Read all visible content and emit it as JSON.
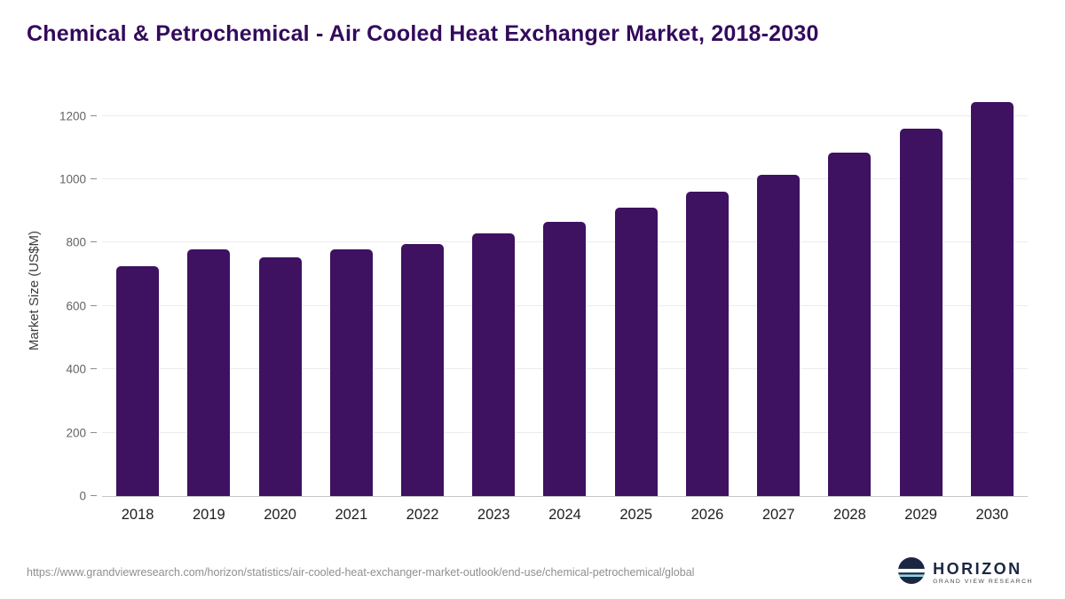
{
  "chart_data": {
    "type": "bar",
    "title": "Chemical & Petrochemical - Air Cooled Heat Exchanger Market, 2018-2030",
    "xlabel": "",
    "ylabel": "Market Size (US$M)",
    "categories": [
      "2018",
      "2019",
      "2020",
      "2021",
      "2022",
      "2023",
      "2024",
      "2025",
      "2026",
      "2027",
      "2028",
      "2029",
      "2030"
    ],
    "values": [
      725,
      780,
      755,
      780,
      795,
      830,
      865,
      910,
      960,
      1015,
      1085,
      1160,
      1245
    ],
    "yticks": [
      0,
      200,
      400,
      600,
      800,
      1000,
      1200
    ],
    "ylim": [
      0,
      1300
    ],
    "grid": true,
    "legend": "none",
    "bar_color": "#3e1161",
    "title_color": "#330a5c"
  },
  "footer": {
    "source_url": "https://www.grandviewresearch.com/horizon/statistics/air-cooled-heat-exchanger-market-outlook/end-use/chemical-petrochemical/global",
    "logo": {
      "name": "HORIZON",
      "subtitle": "GRAND VIEW RESEARCH"
    }
  }
}
